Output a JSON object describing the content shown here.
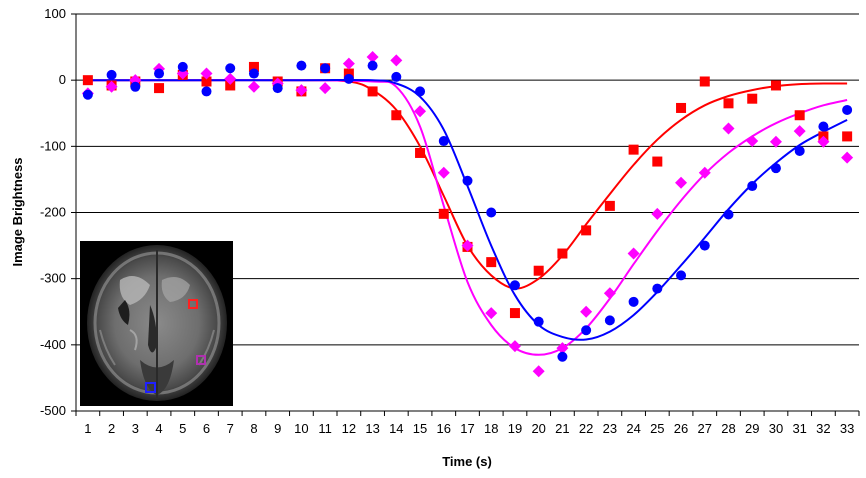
{
  "chart_data": {
    "type": "scatter",
    "title": "",
    "xlabel": "Time (s)",
    "ylabel": "Image Brightness",
    "xlim": [
      1,
      33
    ],
    "ylim": [
      -500,
      100
    ],
    "x_ticks": [
      1,
      2,
      3,
      4,
      5,
      6,
      7,
      8,
      9,
      10,
      11,
      12,
      13,
      14,
      15,
      16,
      17,
      18,
      19,
      20,
      21,
      22,
      23,
      24,
      25,
      26,
      27,
      28,
      29,
      30,
      31,
      32,
      33
    ],
    "y_ticks": [
      100,
      0,
      -100,
      -200,
      -300,
      -400,
      -500
    ],
    "grid": "horizontal",
    "legend": "none",
    "inset": "brain MRI slice with red, purple and blue square markers",
    "series": [
      {
        "color": "#ff0000",
        "marker": "square",
        "x": [
          1,
          2,
          3,
          4,
          5,
          6,
          7,
          8,
          9,
          10,
          11,
          12,
          13,
          14,
          15,
          16,
          17,
          18,
          19,
          20,
          21,
          22,
          23,
          24,
          25,
          26,
          27,
          28,
          29,
          30,
          31,
          32,
          33
        ],
        "values": [
          0,
          -8,
          -2,
          -12,
          8,
          -2,
          -8,
          20,
          -2,
          -17,
          18,
          10,
          -17,
          -53,
          -110,
          -202,
          -252,
          -275,
          -352,
          -288,
          -262,
          -227,
          -190,
          -105,
          -123,
          -42,
          -2,
          -35,
          -28,
          -8,
          -53,
          -85,
          -85
        ],
        "fit_x": [
          1,
          5,
          10,
          12,
          13,
          14,
          15,
          16,
          17,
          18,
          19,
          20,
          21,
          22,
          23,
          24,
          25,
          26,
          27,
          28,
          29,
          30,
          31,
          32,
          33
        ],
        "fit_values": [
          0,
          0,
          0,
          -2,
          -15,
          -45,
          -100,
          -175,
          -250,
          -295,
          -315,
          -300,
          -265,
          -218,
          -172,
          -128,
          -90,
          -60,
          -38,
          -24,
          -15,
          -9,
          -6,
          -5,
          -5
        ]
      },
      {
        "color": "#ff00ff",
        "marker": "diamond",
        "x": [
          1,
          2,
          3,
          4,
          5,
          6,
          7,
          8,
          9,
          10,
          11,
          12,
          13,
          14,
          15,
          16,
          17,
          18,
          19,
          20,
          21,
          22,
          23,
          24,
          25,
          26,
          27,
          28,
          29,
          30,
          31,
          32,
          33
        ],
        "values": [
          -20,
          -10,
          0,
          17,
          10,
          10,
          2,
          -10,
          -5,
          -15,
          -12,
          25,
          35,
          30,
          -47,
          -140,
          -250,
          -352,
          -402,
          -440,
          -405,
          -350,
          -322,
          -262,
          -202,
          -155,
          -140,
          -73,
          -92,
          -93,
          -77,
          -93,
          -117
        ],
        "fit_x": [
          1,
          5,
          10,
          13,
          14,
          15,
          16,
          17,
          18,
          19,
          20,
          21,
          22,
          23,
          24,
          25,
          26,
          27,
          28,
          29,
          30,
          31,
          32,
          33
        ],
        "fit_values": [
          0,
          0,
          0,
          -2,
          -10,
          -70,
          -190,
          -305,
          -370,
          -405,
          -415,
          -405,
          -375,
          -330,
          -278,
          -228,
          -182,
          -142,
          -110,
          -85,
          -65,
          -50,
          -38,
          -30
        ]
      },
      {
        "color": "#0000ff",
        "marker": "circle",
        "x": [
          1,
          2,
          3,
          4,
          5,
          6,
          7,
          8,
          9,
          10,
          11,
          12,
          13,
          14,
          15,
          16,
          17,
          18,
          19,
          20,
          21,
          22,
          23,
          24,
          25,
          26,
          27,
          28,
          29,
          30,
          31,
          32,
          33
        ],
        "values": [
          -22,
          8,
          -10,
          10,
          20,
          -17,
          18,
          10,
          -12,
          22,
          18,
          2,
          22,
          5,
          -17,
          -92,
          -152,
          -200,
          -310,
          -365,
          -418,
          -378,
          -363,
          -335,
          -315,
          -295,
          -250,
          -203,
          -160,
          -133,
          -107,
          -70,
          -45
        ],
        "fit_x": [
          1,
          5,
          10,
          13,
          14,
          15,
          16,
          17,
          18,
          19,
          20,
          21,
          22,
          23,
          24,
          25,
          26,
          27,
          28,
          29,
          30,
          31,
          32,
          33
        ],
        "fit_values": [
          0,
          0,
          0,
          0,
          -5,
          -25,
          -75,
          -160,
          -250,
          -325,
          -370,
          -388,
          -392,
          -380,
          -355,
          -320,
          -280,
          -238,
          -195,
          -157,
          -125,
          -98,
          -78,
          -60
        ]
      }
    ]
  },
  "inset_markers": [
    {
      "color": "#ff2020",
      "name": "red-roi"
    },
    {
      "color": "#b030b0",
      "name": "purple-roi"
    },
    {
      "color": "#2020ff",
      "name": "blue-roi"
    }
  ]
}
